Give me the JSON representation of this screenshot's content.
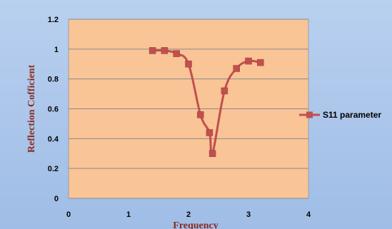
{
  "chart_data": {
    "type": "line",
    "title": "",
    "xlabel": "Frequency",
    "ylabel": "Reflection Cofficient",
    "xlim": [
      0,
      4
    ],
    "ylim": [
      0,
      1.2
    ],
    "x_ticks": [
      "0",
      "1",
      "2",
      "3",
      "4"
    ],
    "y_ticks": [
      "0",
      "0.2",
      "0.4",
      "0.6",
      "0.8",
      "1",
      "1.2"
    ],
    "grid": "horizontal",
    "legend_position": "right",
    "plot_background": "#f9c496",
    "series": [
      {
        "name": "S11 parameter",
        "color": "#c0504d",
        "marker": "square",
        "x": [
          1.4,
          1.6,
          1.8,
          2.0,
          2.2,
          2.35,
          2.4,
          2.6,
          2.8,
          3.0,
          3.2
        ],
        "y": [
          0.99,
          0.99,
          0.97,
          0.9,
          0.56,
          0.44,
          0.3,
          0.72,
          0.87,
          0.92,
          0.91
        ]
      }
    ]
  }
}
